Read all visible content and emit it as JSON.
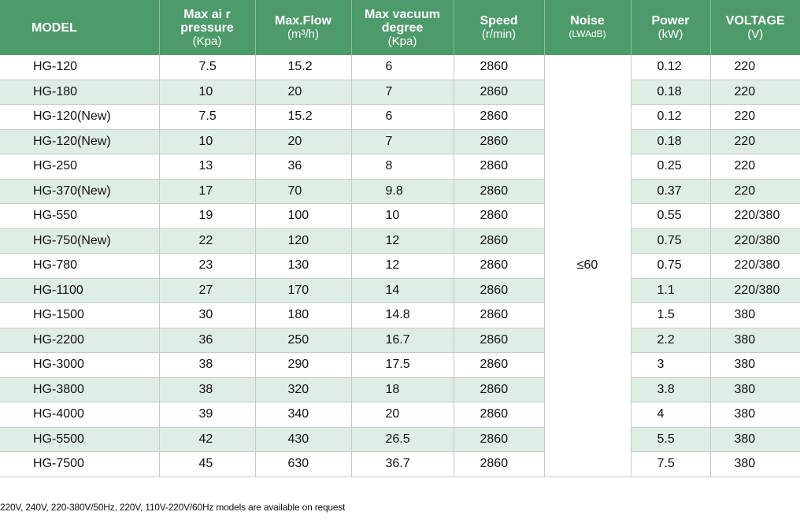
{
  "headers": [
    {
      "line1": "MODEL",
      "line2": ""
    },
    {
      "line1": "Max ai r pressure",
      "line2": "(Kpa)"
    },
    {
      "line1": "Max.Flow",
      "line2": "(m³/h)"
    },
    {
      "line1": "Max vacuum degree",
      "line2": "(Kpa)"
    },
    {
      "line1": "Speed",
      "line2": "(r/min)"
    },
    {
      "line1": "Noise",
      "line2": "(LWAdB)"
    },
    {
      "line1": "Power",
      "line2": "(kW)"
    },
    {
      "line1": "VOLTAGE",
      "line2": "(V)"
    }
  ],
  "noise_value": "≤60",
  "rows": [
    {
      "model": "HG-120",
      "pressure": "7.5",
      "flow": "15.2",
      "vacuum": "6",
      "speed": "2860",
      "power": "0.12",
      "voltage": "220"
    },
    {
      "model": "HG-180",
      "pressure": "10",
      "flow": "20",
      "vacuum": "7",
      "speed": "2860",
      "power": "0.18",
      "voltage": "220"
    },
    {
      "model": "HG-120(New)",
      "pressure": "7.5",
      "flow": "15.2",
      "vacuum": "6",
      "speed": "2860",
      "power": "0.12",
      "voltage": "220"
    },
    {
      "model": "HG-120(New)",
      "pressure": "10",
      "flow": "20",
      "vacuum": "7",
      "speed": "2860",
      "power": "0.18",
      "voltage": "220"
    },
    {
      "model": "HG-250",
      "pressure": "13",
      "flow": "36",
      "vacuum": "8",
      "speed": "2860",
      "power": "0.25",
      "voltage": "220"
    },
    {
      "model": "HG-370(New)",
      "pressure": "17",
      "flow": "70",
      "vacuum": "9.8",
      "speed": "2860",
      "power": "0.37",
      "voltage": "220"
    },
    {
      "model": "HG-550",
      "pressure": "19",
      "flow": "100",
      "vacuum": "10",
      "speed": "2860",
      "power": "0.55",
      "voltage": "220/380"
    },
    {
      "model": "HG-750(New)",
      "pressure": "22",
      "flow": "120",
      "vacuum": "12",
      "speed": "2860",
      "power": "0.75",
      "voltage": "220/380"
    },
    {
      "model": "HG-780",
      "pressure": "23",
      "flow": "130",
      "vacuum": "12",
      "speed": "2860",
      "power": "0.75",
      "voltage": "220/380"
    },
    {
      "model": "HG-1100",
      "pressure": "27",
      "flow": "170",
      "vacuum": "14",
      "speed": "2860",
      "power": "1.1",
      "voltage": "220/380"
    },
    {
      "model": "HG-1500",
      "pressure": "30",
      "flow": "180",
      "vacuum": "14.8",
      "speed": "2860",
      "power": "1.5",
      "voltage": "380"
    },
    {
      "model": "HG-2200",
      "pressure": "36",
      "flow": "250",
      "vacuum": "16.7",
      "speed": "2860",
      "power": "2.2",
      "voltage": "380"
    },
    {
      "model": "HG-3000",
      "pressure": "38",
      "flow": "290",
      "vacuum": "17.5",
      "speed": "2860",
      "power": "3",
      "voltage": "380"
    },
    {
      "model": "HG-3800",
      "pressure": "38",
      "flow": "320",
      "vacuum": "18",
      "speed": "2860",
      "power": "3.8",
      "voltage": "380"
    },
    {
      "model": "HG-4000",
      "pressure": "39",
      "flow": "340",
      "vacuum": "20",
      "speed": "2860",
      "power": "4",
      "voltage": "380"
    },
    {
      "model": "HG-5500",
      "pressure": "42",
      "flow": "430",
      "vacuum": "26.5",
      "speed": "2860",
      "power": "5.5",
      "voltage": "380"
    },
    {
      "model": "HG-7500",
      "pressure": "45",
      "flow": "630",
      "vacuum": "36.7",
      "speed": "2860",
      "power": "7.5",
      "voltage": "380"
    }
  ],
  "footnote": "220V, 240V, 220-380V/50Hz, 220V, 110V-220V/60Hz models are available on request"
}
